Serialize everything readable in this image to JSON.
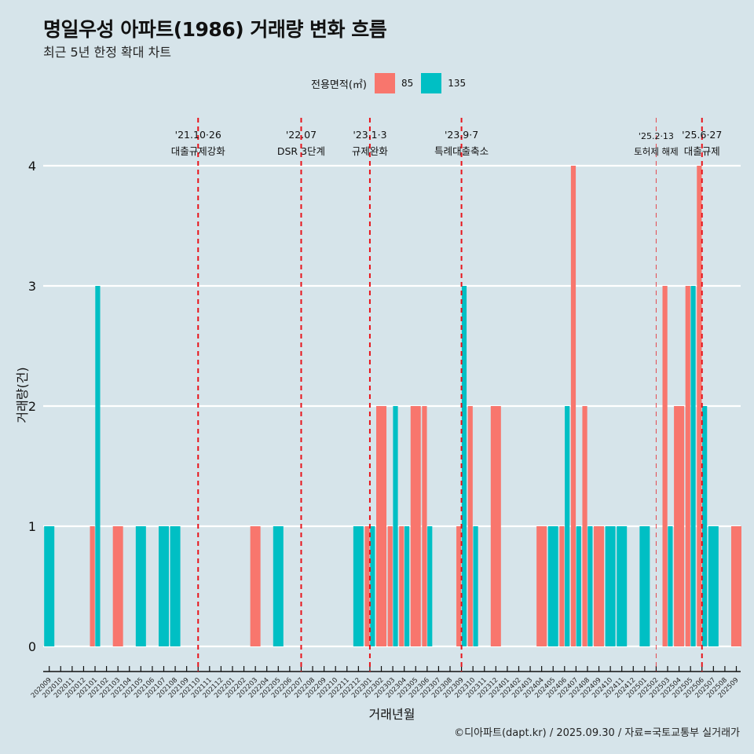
{
  "title": "명일우성 아파트(1986) 거래량 변화 흐름",
  "subtitle": "최근 5년 한정 확대 차트",
  "caption": "©디아파트(dapt.kr) / 2025.09.30 / 자료=국토교통부 실거래가",
  "chart_data": {
    "type": "bar",
    "xlabel": "거래년월",
    "ylabel": "거래량(건)",
    "ylim": [
      0,
      4
    ],
    "yticks": [
      "0",
      "1",
      "2",
      "3",
      "4"
    ],
    "grid": true,
    "legend": {
      "title": "전용면적(㎡)",
      "position": "top",
      "entries": [
        "85",
        "135"
      ]
    },
    "colors": {
      "85": "#f8766d",
      "135": "#00bfc4",
      "vline": "#e8141b"
    },
    "categories": [
      "202009",
      "202010",
      "202011",
      "202012",
      "202101",
      "202102",
      "202103",
      "202104",
      "202105",
      "202106",
      "202107",
      "202108",
      "202109",
      "202110",
      "202111",
      "202112",
      "202201",
      "202202",
      "202203",
      "202204",
      "202205",
      "202206",
      "202207",
      "202208",
      "202209",
      "202210",
      "202211",
      "202212",
      "202301",
      "202302",
      "202303",
      "202304",
      "202305",
      "202306",
      "202307",
      "202308",
      "202309",
      "202310",
      "202311",
      "202312",
      "202401",
      "202402",
      "202403",
      "202404",
      "202405",
      "202406",
      "202407",
      "202408",
      "202409",
      "202410",
      "202411",
      "202412",
      "202501",
      "202502",
      "202503",
      "202504",
      "202505",
      "202506",
      "202507",
      "202508",
      "202509"
    ],
    "series": [
      {
        "name": "85",
        "values": [
          0,
          0,
          0,
          0,
          1,
          0,
          1,
          0,
          0,
          0,
          0,
          0,
          0,
          0,
          0,
          0,
          0,
          0,
          1,
          0,
          0,
          0,
          0,
          0,
          0,
          0,
          0,
          0,
          1,
          2,
          1,
          1,
          2,
          2,
          0,
          0,
          1,
          2,
          0,
          2,
          0,
          0,
          0,
          1,
          0,
          1,
          4,
          2,
          1,
          0,
          0,
          0,
          0,
          0,
          3,
          2,
          3,
          4,
          0,
          0,
          1
        ]
      },
      {
        "name": "135",
        "values": [
          1,
          0,
          0,
          0,
          3,
          0,
          0,
          0,
          1,
          0,
          1,
          1,
          0,
          0,
          0,
          0,
          0,
          0,
          0,
          0,
          1,
          0,
          0,
          0,
          0,
          0,
          0,
          1,
          1,
          0,
          2,
          1,
          0,
          1,
          0,
          0,
          3,
          1,
          0,
          0,
          0,
          0,
          0,
          0,
          1,
          2,
          1,
          1,
          0,
          1,
          1,
          0,
          1,
          0,
          1,
          0,
          3,
          2,
          1,
          0,
          0
        ]
      }
    ],
    "annotations": [
      {
        "month": "202110",
        "date": "'21.10·26",
        "label": "대출규제강화",
        "style": "bold"
      },
      {
        "month": "202207",
        "date": "'22.07",
        "label": "DSR 3단계",
        "style": "bold"
      },
      {
        "month": "202301",
        "date": "'23.1·3",
        "label": "규제완화",
        "style": "bold"
      },
      {
        "month": "202309",
        "date": "'23.9·7",
        "label": "특례대출축소",
        "style": "bold"
      },
      {
        "month": "202502",
        "date": "'25.2·13",
        "label": "토허제 해제",
        "style": "light"
      },
      {
        "month": "202506",
        "date": "'25.6·27",
        "label": "대출규제",
        "style": "bold"
      }
    ]
  }
}
